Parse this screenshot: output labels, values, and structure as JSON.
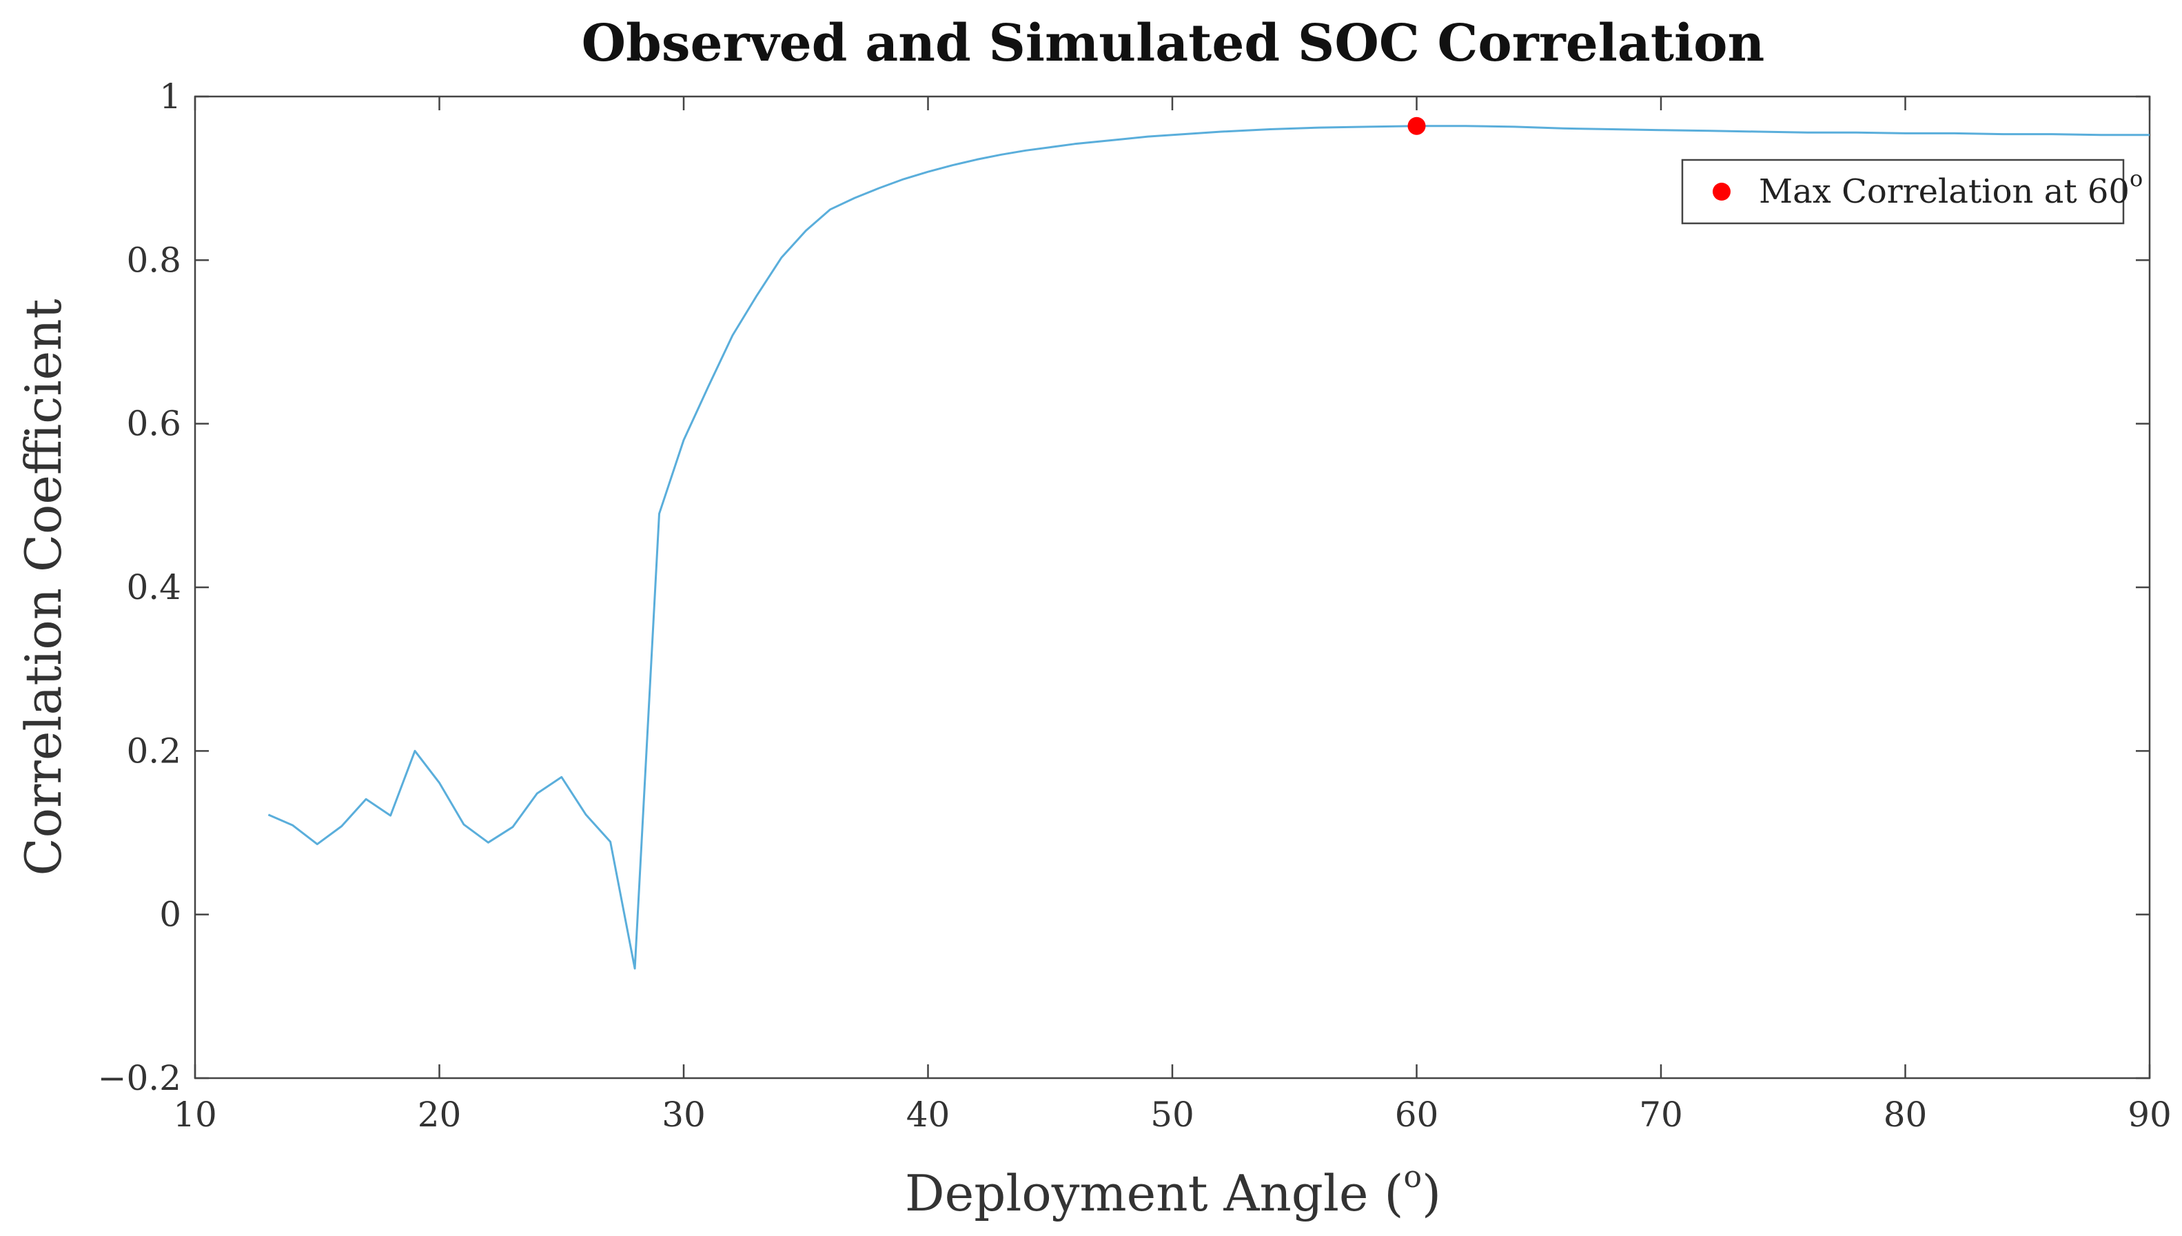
{
  "chart_data": {
    "type": "line",
    "title": "Observed and Simulated SOC Correlation",
    "xlabel": "Deployment Angle (",
    "xlabel_sup": "o",
    "xlabel_end": ")",
    "ylabel": "Correlation Coefficient",
    "xlim": [
      10,
      90
    ],
    "ylim": [
      -0.2,
      1
    ],
    "xticks": [
      10,
      20,
      30,
      40,
      50,
      60,
      70,
      80,
      90
    ],
    "xtick_labels": [
      "10",
      "20",
      "30",
      "40",
      "50",
      "60",
      "70",
      "80",
      "90"
    ],
    "yticks": [
      -0.2,
      0,
      0.2,
      0.4,
      0.6,
      0.8,
      1
    ],
    "ytick_labels": [
      "−0.2",
      "0",
      "0.2",
      "0.4",
      "0.6",
      "0.8",
      "1"
    ],
    "grid": false,
    "legend_position": "top-right",
    "colors": {
      "line": "#5aaedb",
      "marker": "#ff0000",
      "axes": "#444444"
    },
    "series": [
      {
        "x": [
          13,
          14,
          15,
          16,
          17,
          18,
          19,
          20,
          21,
          22,
          23,
          24,
          25,
          26,
          27,
          28,
          29,
          30,
          31,
          32,
          33,
          34,
          35,
          36,
          37,
          38,
          39,
          40,
          41,
          42,
          43,
          44,
          45,
          46,
          47,
          48,
          49,
          50,
          52,
          54,
          56,
          58,
          60,
          62,
          64,
          66,
          68,
          70,
          72,
          74,
          76,
          78,
          80,
          82,
          84,
          86,
          88,
          90
        ],
        "y": [
          0.122,
          0.109,
          0.086,
          0.108,
          0.141,
          0.121,
          0.2,
          0.161,
          0.11,
          0.088,
          0.107,
          0.148,
          0.168,
          0.122,
          0.089,
          -0.066,
          0.49,
          0.58,
          0.645,
          0.708,
          0.757,
          0.803,
          0.836,
          0.862,
          0.876,
          0.888,
          0.899,
          0.908,
          0.916,
          0.923,
          0.929,
          0.934,
          0.938,
          0.942,
          0.945,
          0.948,
          0.951,
          0.953,
          0.957,
          0.96,
          0.962,
          0.963,
          0.964,
          0.964,
          0.963,
          0.961,
          0.96,
          0.959,
          0.958,
          0.957,
          0.956,
          0.956,
          0.955,
          0.955,
          0.954,
          0.954,
          0.953,
          0.953
        ]
      }
    ],
    "markers": [
      {
        "name": "Max Correlation at 60",
        "label": "Max Correlation at 60",
        "label_sup": "o",
        "x": 60,
        "y": 0.964
      }
    ]
  }
}
